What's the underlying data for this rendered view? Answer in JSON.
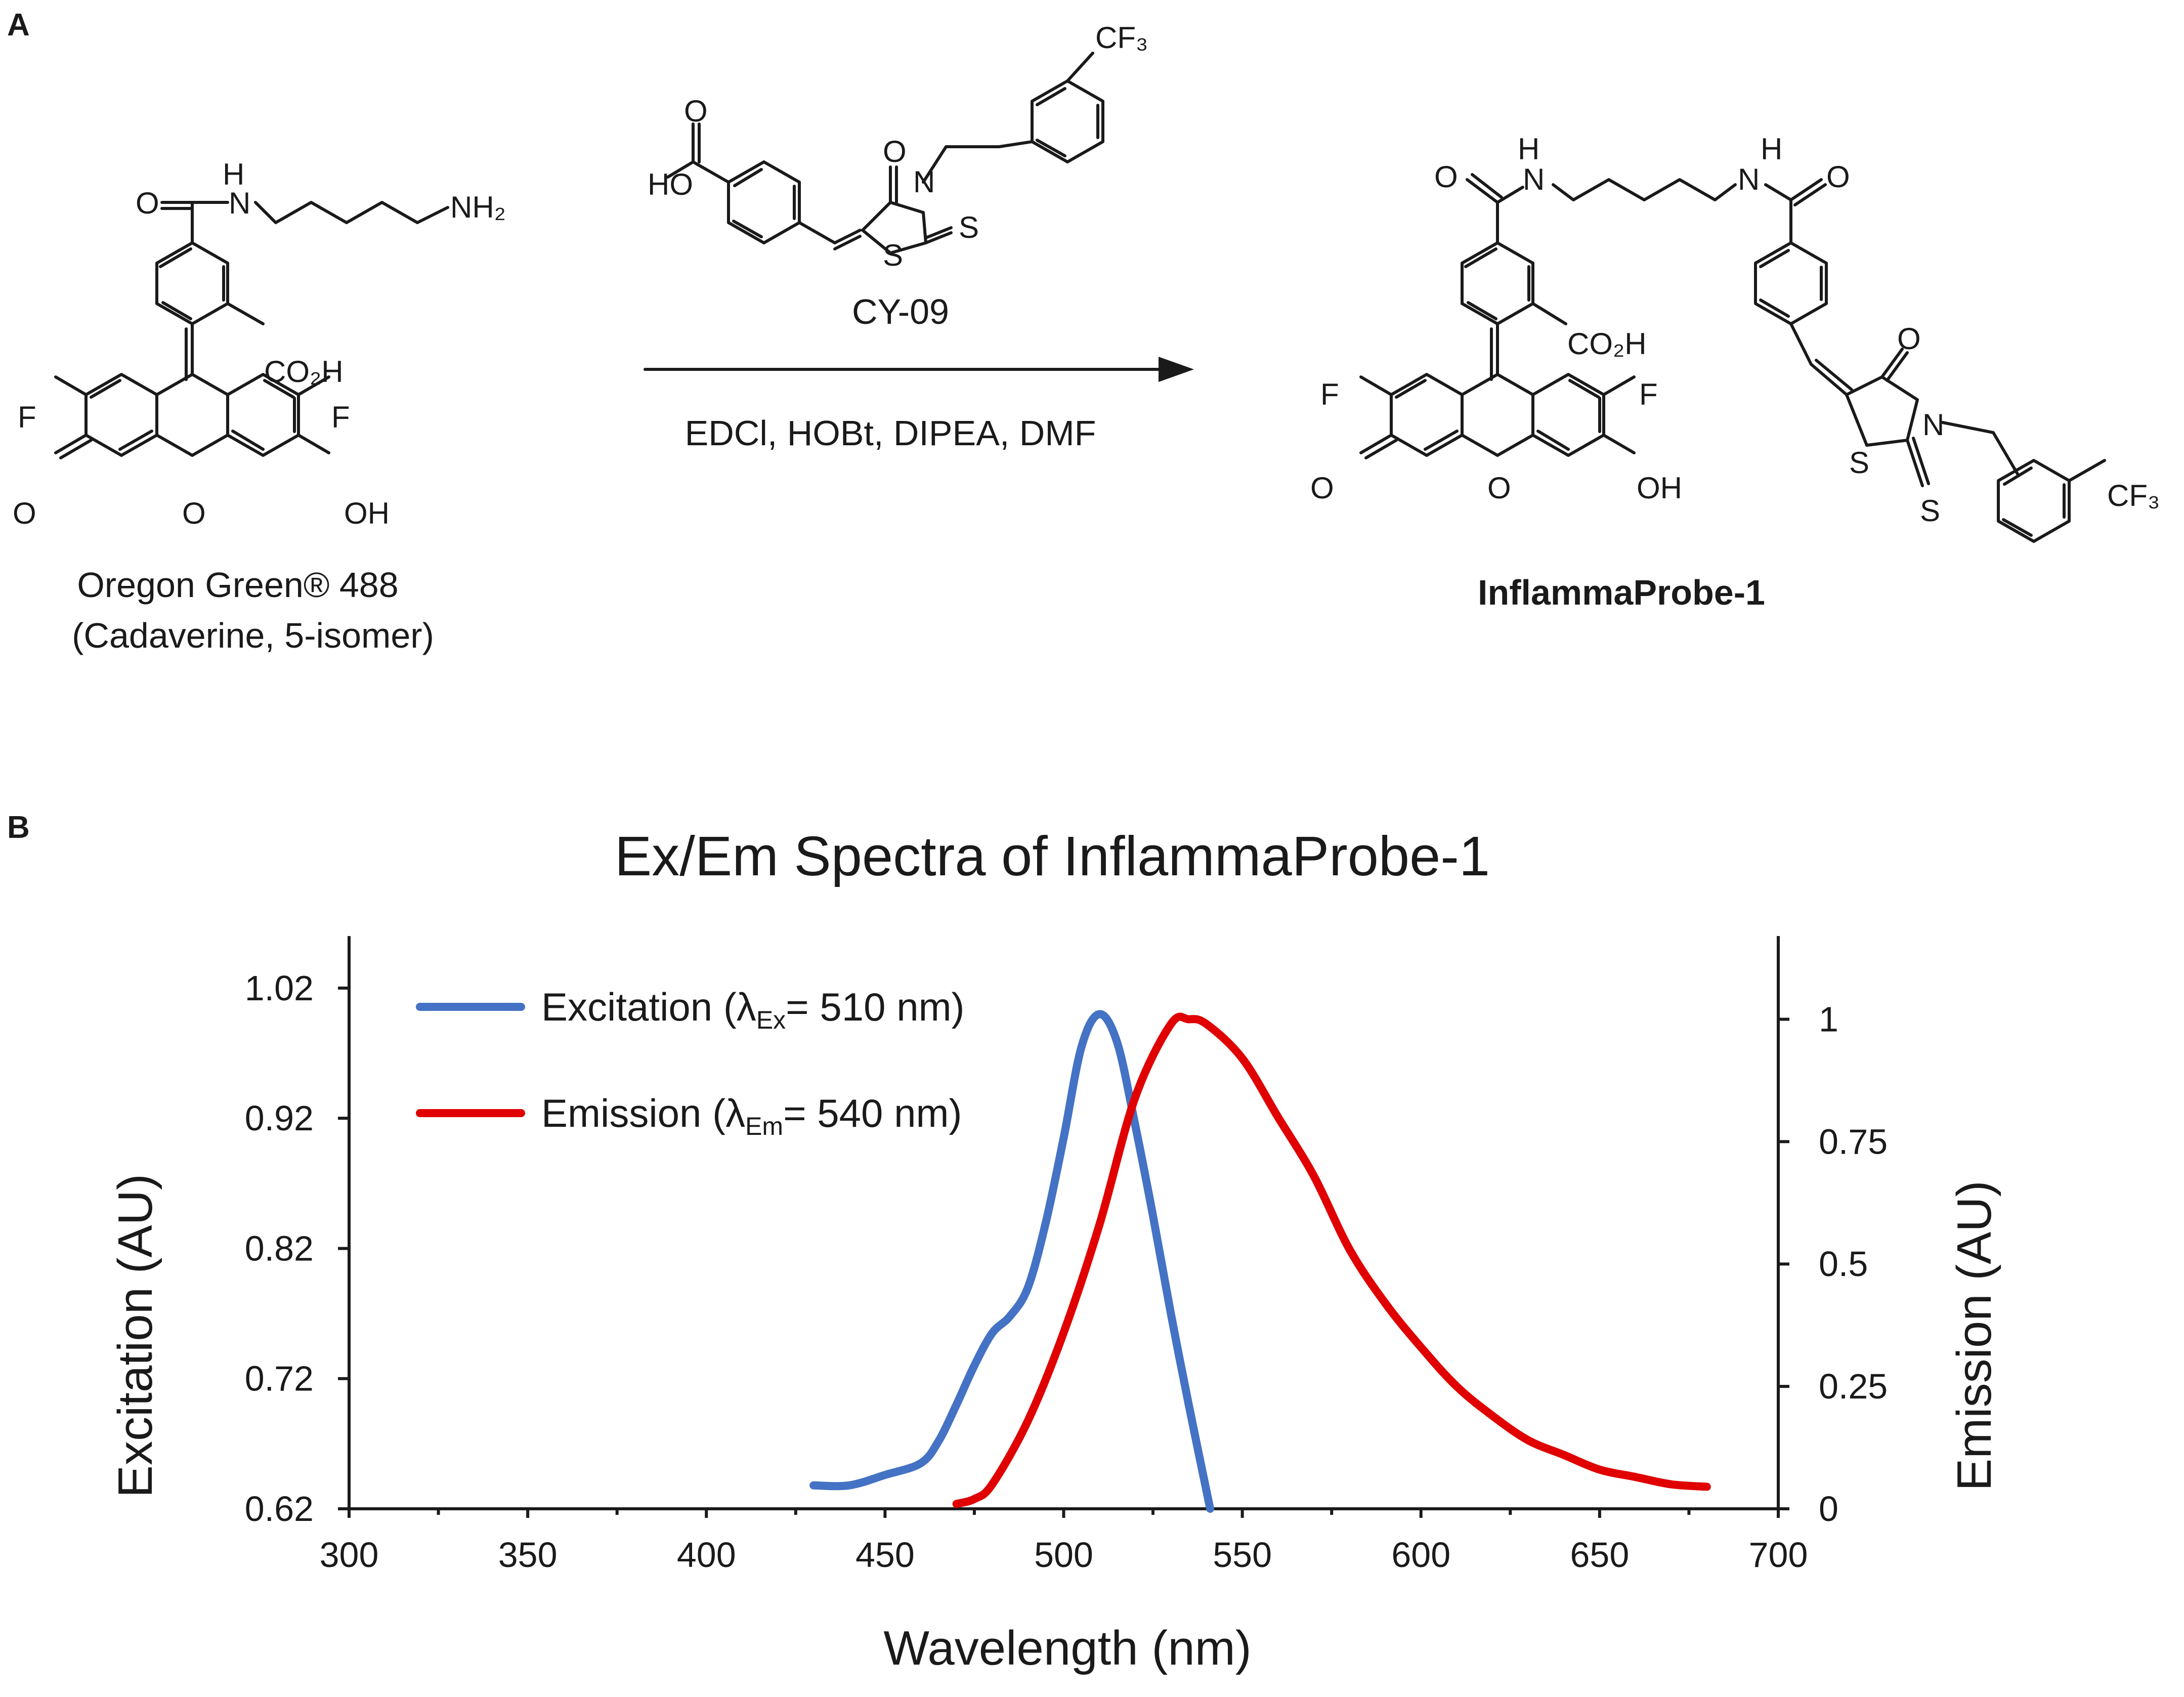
{
  "panels": {
    "a": "A",
    "b": "B"
  },
  "scheme": {
    "reactant1_name": "Oregon Green® 488",
    "reactant1_sub": "(Cadaverine, 5-isomer)",
    "reagent_name": "CY-09",
    "conditions": "EDCl, HOBt, DIPEA, DMF",
    "product_name": "InflammaProbe-1",
    "atoms": {
      "H": "H",
      "N": "N",
      "O": "O",
      "S": "S",
      "F": "F",
      "NH2": "NH₂",
      "CO2H": "CO₂H",
      "OH": "OH",
      "HO": "HO",
      "CF3": "CF₃"
    }
  },
  "chart_data": {
    "type": "line",
    "title": "Ex/Em Spectra of InflammaProbe-1",
    "xlabel": "Wavelength (nm)",
    "ylabel_left": "Excitation (AU)",
    "ylabel_right": "Emission (AU)",
    "xlim": [
      300,
      700
    ],
    "x_ticks": [
      "300",
      "350",
      "400",
      "450",
      "500",
      "550",
      "600",
      "650",
      "700"
    ],
    "ylim_left": [
      0.62,
      1.06
    ],
    "y_ticks_left": [
      "0.62",
      "0.72",
      "0.82",
      "0.92",
      "1.02"
    ],
    "ylim_right": [
      0,
      1.17
    ],
    "y_ticks_right": [
      "0",
      "0.25",
      "0.5",
      "0.75",
      "1"
    ],
    "legend_position": "top-left",
    "series": [
      {
        "name": "Excitation (λEx= 510 nm)",
        "legend_main": "Excitation (λ",
        "legend_sub": "Ex",
        "legend_tail": "= 510 nm)",
        "color": "#4472c4",
        "axis": "left",
        "x": [
          430,
          440,
          450,
          460,
          465,
          470,
          475,
          480,
          485,
          490,
          495,
          500,
          505,
          510,
          515,
          520,
          525,
          530,
          535,
          541
        ],
        "y": [
          0.638,
          0.638,
          0.646,
          0.655,
          0.672,
          0.7,
          0.73,
          0.755,
          0.768,
          0.79,
          0.84,
          0.905,
          0.975,
          1.0,
          0.978,
          0.915,
          0.845,
          0.77,
          0.7,
          0.62
        ]
      },
      {
        "name": "Emission (λEm= 540 nm)",
        "legend_main": "Emission (λ",
        "legend_sub": "Em",
        "legend_tail": "= 540 nm)",
        "color": "#e00000",
        "axis": "right",
        "x": [
          470,
          475,
          480,
          490,
          500,
          510,
          520,
          530,
          535,
          540,
          550,
          560,
          570,
          580,
          590,
          600,
          610,
          620,
          630,
          640,
          650,
          660,
          670,
          680
        ],
        "y": [
          0.01,
          0.02,
          0.05,
          0.18,
          0.36,
          0.58,
          0.84,
          0.99,
          1.0,
          0.99,
          0.92,
          0.8,
          0.68,
          0.53,
          0.42,
          0.33,
          0.25,
          0.19,
          0.14,
          0.11,
          0.08,
          0.065,
          0.05,
          0.045
        ]
      }
    ]
  }
}
